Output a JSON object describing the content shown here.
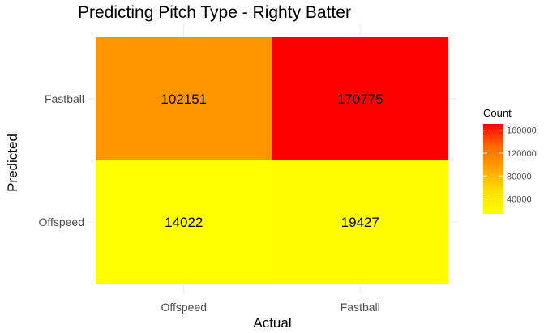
{
  "chart_data": {
    "type": "heatmap",
    "title": "Predicting Pitch Type - Righty Batter",
    "xlabel": "Actual",
    "ylabel": "Predicted",
    "x_categories": [
      "Offspeed",
      "Fastball"
    ],
    "y_categories": [
      "Offspeed",
      "Fastball"
    ],
    "cells": [
      {
        "x": "Offspeed",
        "y": "Fastball",
        "value": 102151
      },
      {
        "x": "Fastball",
        "y": "Fastball",
        "value": 170775
      },
      {
        "x": "Offspeed",
        "y": "Offspeed",
        "value": 14022
      },
      {
        "x": "Fastball",
        "y": "Offspeed",
        "value": 19427
      }
    ],
    "legend": {
      "title": "Count",
      "ticks": [
        40000,
        80000,
        120000,
        160000
      ],
      "low_color": "#ffff00",
      "high_color": "#ff0000",
      "range": [
        14022,
        170775
      ],
      "placement": "right"
    }
  }
}
